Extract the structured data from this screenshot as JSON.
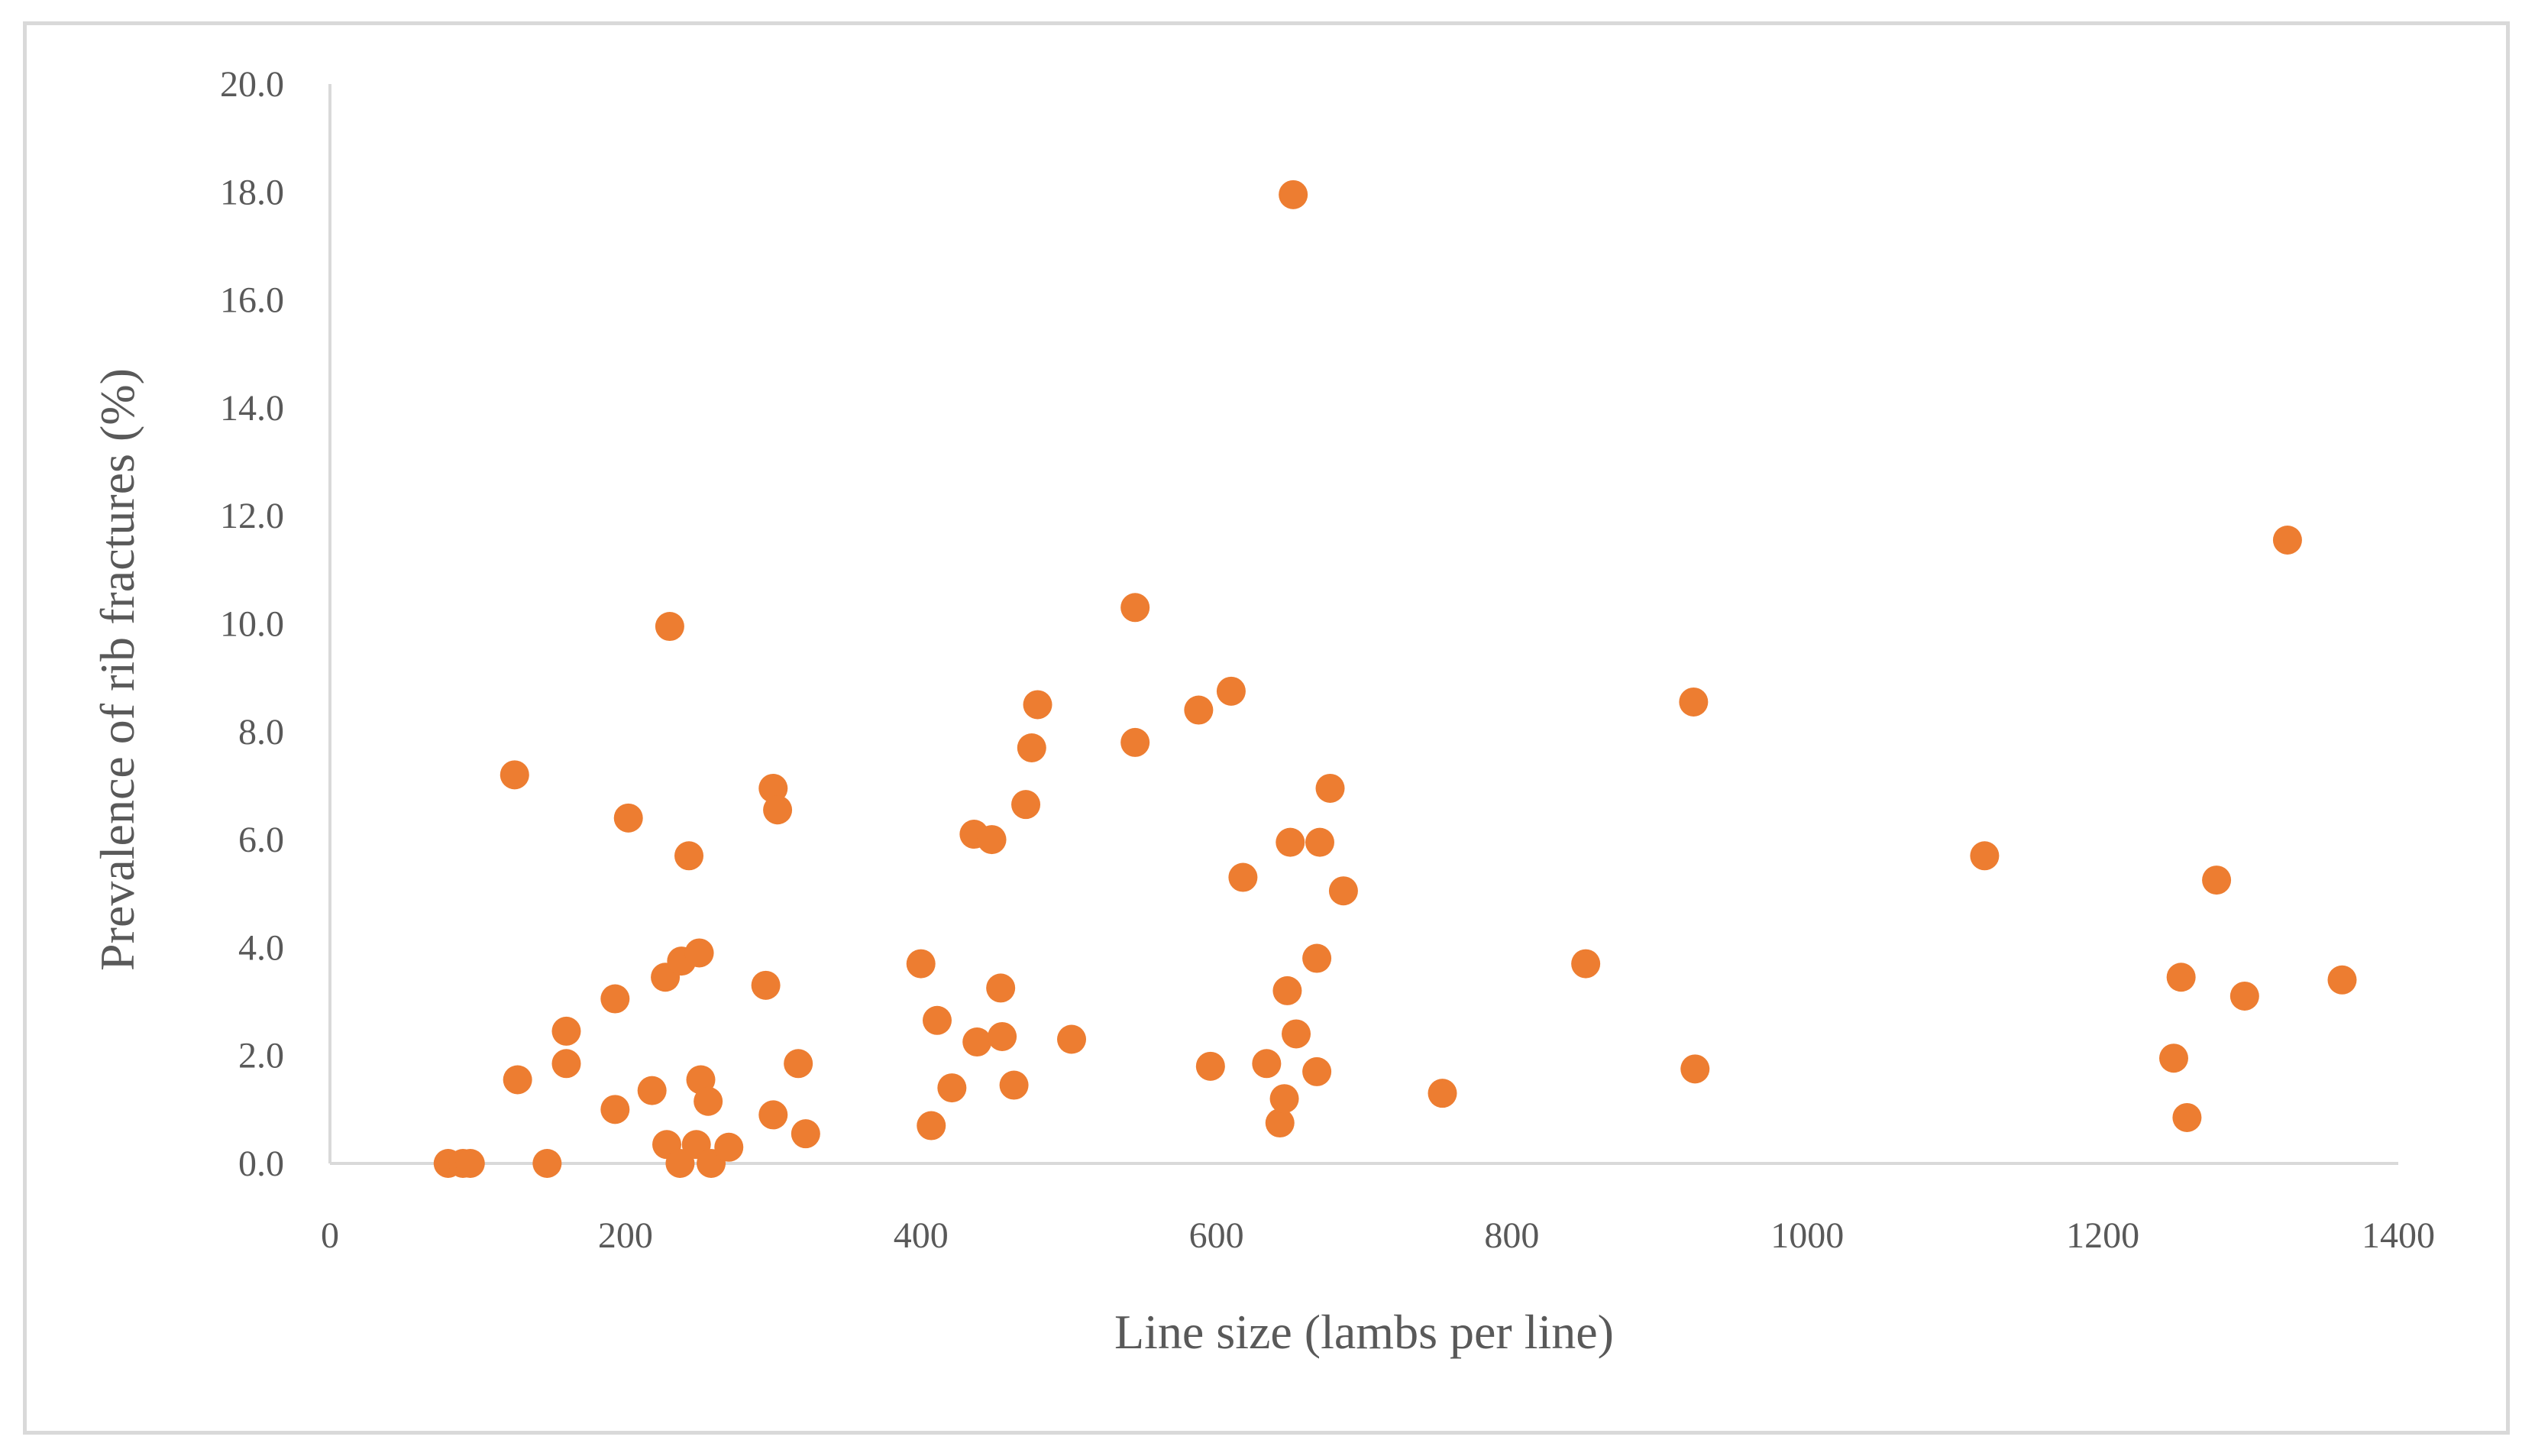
{
  "chart_data": {
    "type": "scatter",
    "title": "",
    "xlabel": "Line size (lambs per line)",
    "ylabel": "Prevalence of rib fractures (%)",
    "xlim": [
      0,
      1400
    ],
    "ylim": [
      0,
      20
    ],
    "x_ticks": [
      "0",
      "200",
      "400",
      "600",
      "800",
      "1000",
      "1200",
      "1400"
    ],
    "y_ticks": [
      "0.0",
      "2.0",
      "4.0",
      "6.0",
      "8.0",
      "10.0",
      "12.0",
      "14.0",
      "16.0",
      "18.0",
      "20.0"
    ],
    "grid": false,
    "legend": "none",
    "marker_color": "#ED7D31",
    "axis_color": "#d9d9d9",
    "series": [
      {
        "points": [
          [
            80,
            0
          ],
          [
            90,
            0
          ],
          [
            95,
            0
          ],
          [
            125,
            7.2
          ],
          [
            127,
            1.55
          ],
          [
            147,
            0
          ],
          [
            160,
            2.45
          ],
          [
            160,
            1.85
          ],
          [
            193,
            3.05
          ],
          [
            193,
            1.0
          ],
          [
            202,
            6.4
          ],
          [
            218,
            1.35
          ],
          [
            227,
            3.45
          ],
          [
            228,
            0.35
          ],
          [
            230,
            9.95
          ],
          [
            237,
            0
          ],
          [
            238,
            3.75
          ],
          [
            243,
            5.7
          ],
          [
            248,
            0.35
          ],
          [
            250,
            3.9
          ],
          [
            251,
            1.55
          ],
          [
            256,
            1.15
          ],
          [
            258,
            0
          ],
          [
            270,
            0.3
          ],
          [
            295,
            3.3
          ],
          [
            300,
            6.95
          ],
          [
            300,
            0.9
          ],
          [
            303,
            6.55
          ],
          [
            317,
            1.85
          ],
          [
            322,
            0.55
          ],
          [
            400,
            3.7
          ],
          [
            407,
            0.7
          ],
          [
            411,
            2.65
          ],
          [
            421,
            1.4
          ],
          [
            436,
            6.1
          ],
          [
            438,
            2.25
          ],
          [
            448,
            6.0
          ],
          [
            454,
            3.25
          ],
          [
            455,
            2.35
          ],
          [
            463,
            1.45
          ],
          [
            471,
            6.65
          ],
          [
            475,
            7.7
          ],
          [
            479,
            8.5
          ],
          [
            502,
            2.3
          ],
          [
            545,
            10.3
          ],
          [
            545,
            7.8
          ],
          [
            588,
            8.4
          ],
          [
            596,
            1.8
          ],
          [
            610,
            8.75
          ],
          [
            618,
            5.3
          ],
          [
            634,
            1.85
          ],
          [
            643,
            0.75
          ],
          [
            646,
            1.2
          ],
          [
            648,
            3.2
          ],
          [
            650,
            5.95
          ],
          [
            652,
            17.95
          ],
          [
            654,
            2.4
          ],
          [
            668,
            3.8
          ],
          [
            668,
            1.7
          ],
          [
            670,
            5.95
          ],
          [
            677,
            6.95
          ],
          [
            686,
            5.05
          ],
          [
            753,
            1.3
          ],
          [
            850,
            3.7
          ],
          [
            923,
            8.55
          ],
          [
            924,
            1.75
          ],
          [
            1120,
            5.7
          ],
          [
            1248,
            1.95
          ],
          [
            1253,
            3.45
          ],
          [
            1257,
            0.85
          ],
          [
            1277,
            5.25
          ],
          [
            1296,
            3.1
          ],
          [
            1325,
            11.55
          ],
          [
            1362,
            3.4
          ]
        ]
      }
    ]
  }
}
